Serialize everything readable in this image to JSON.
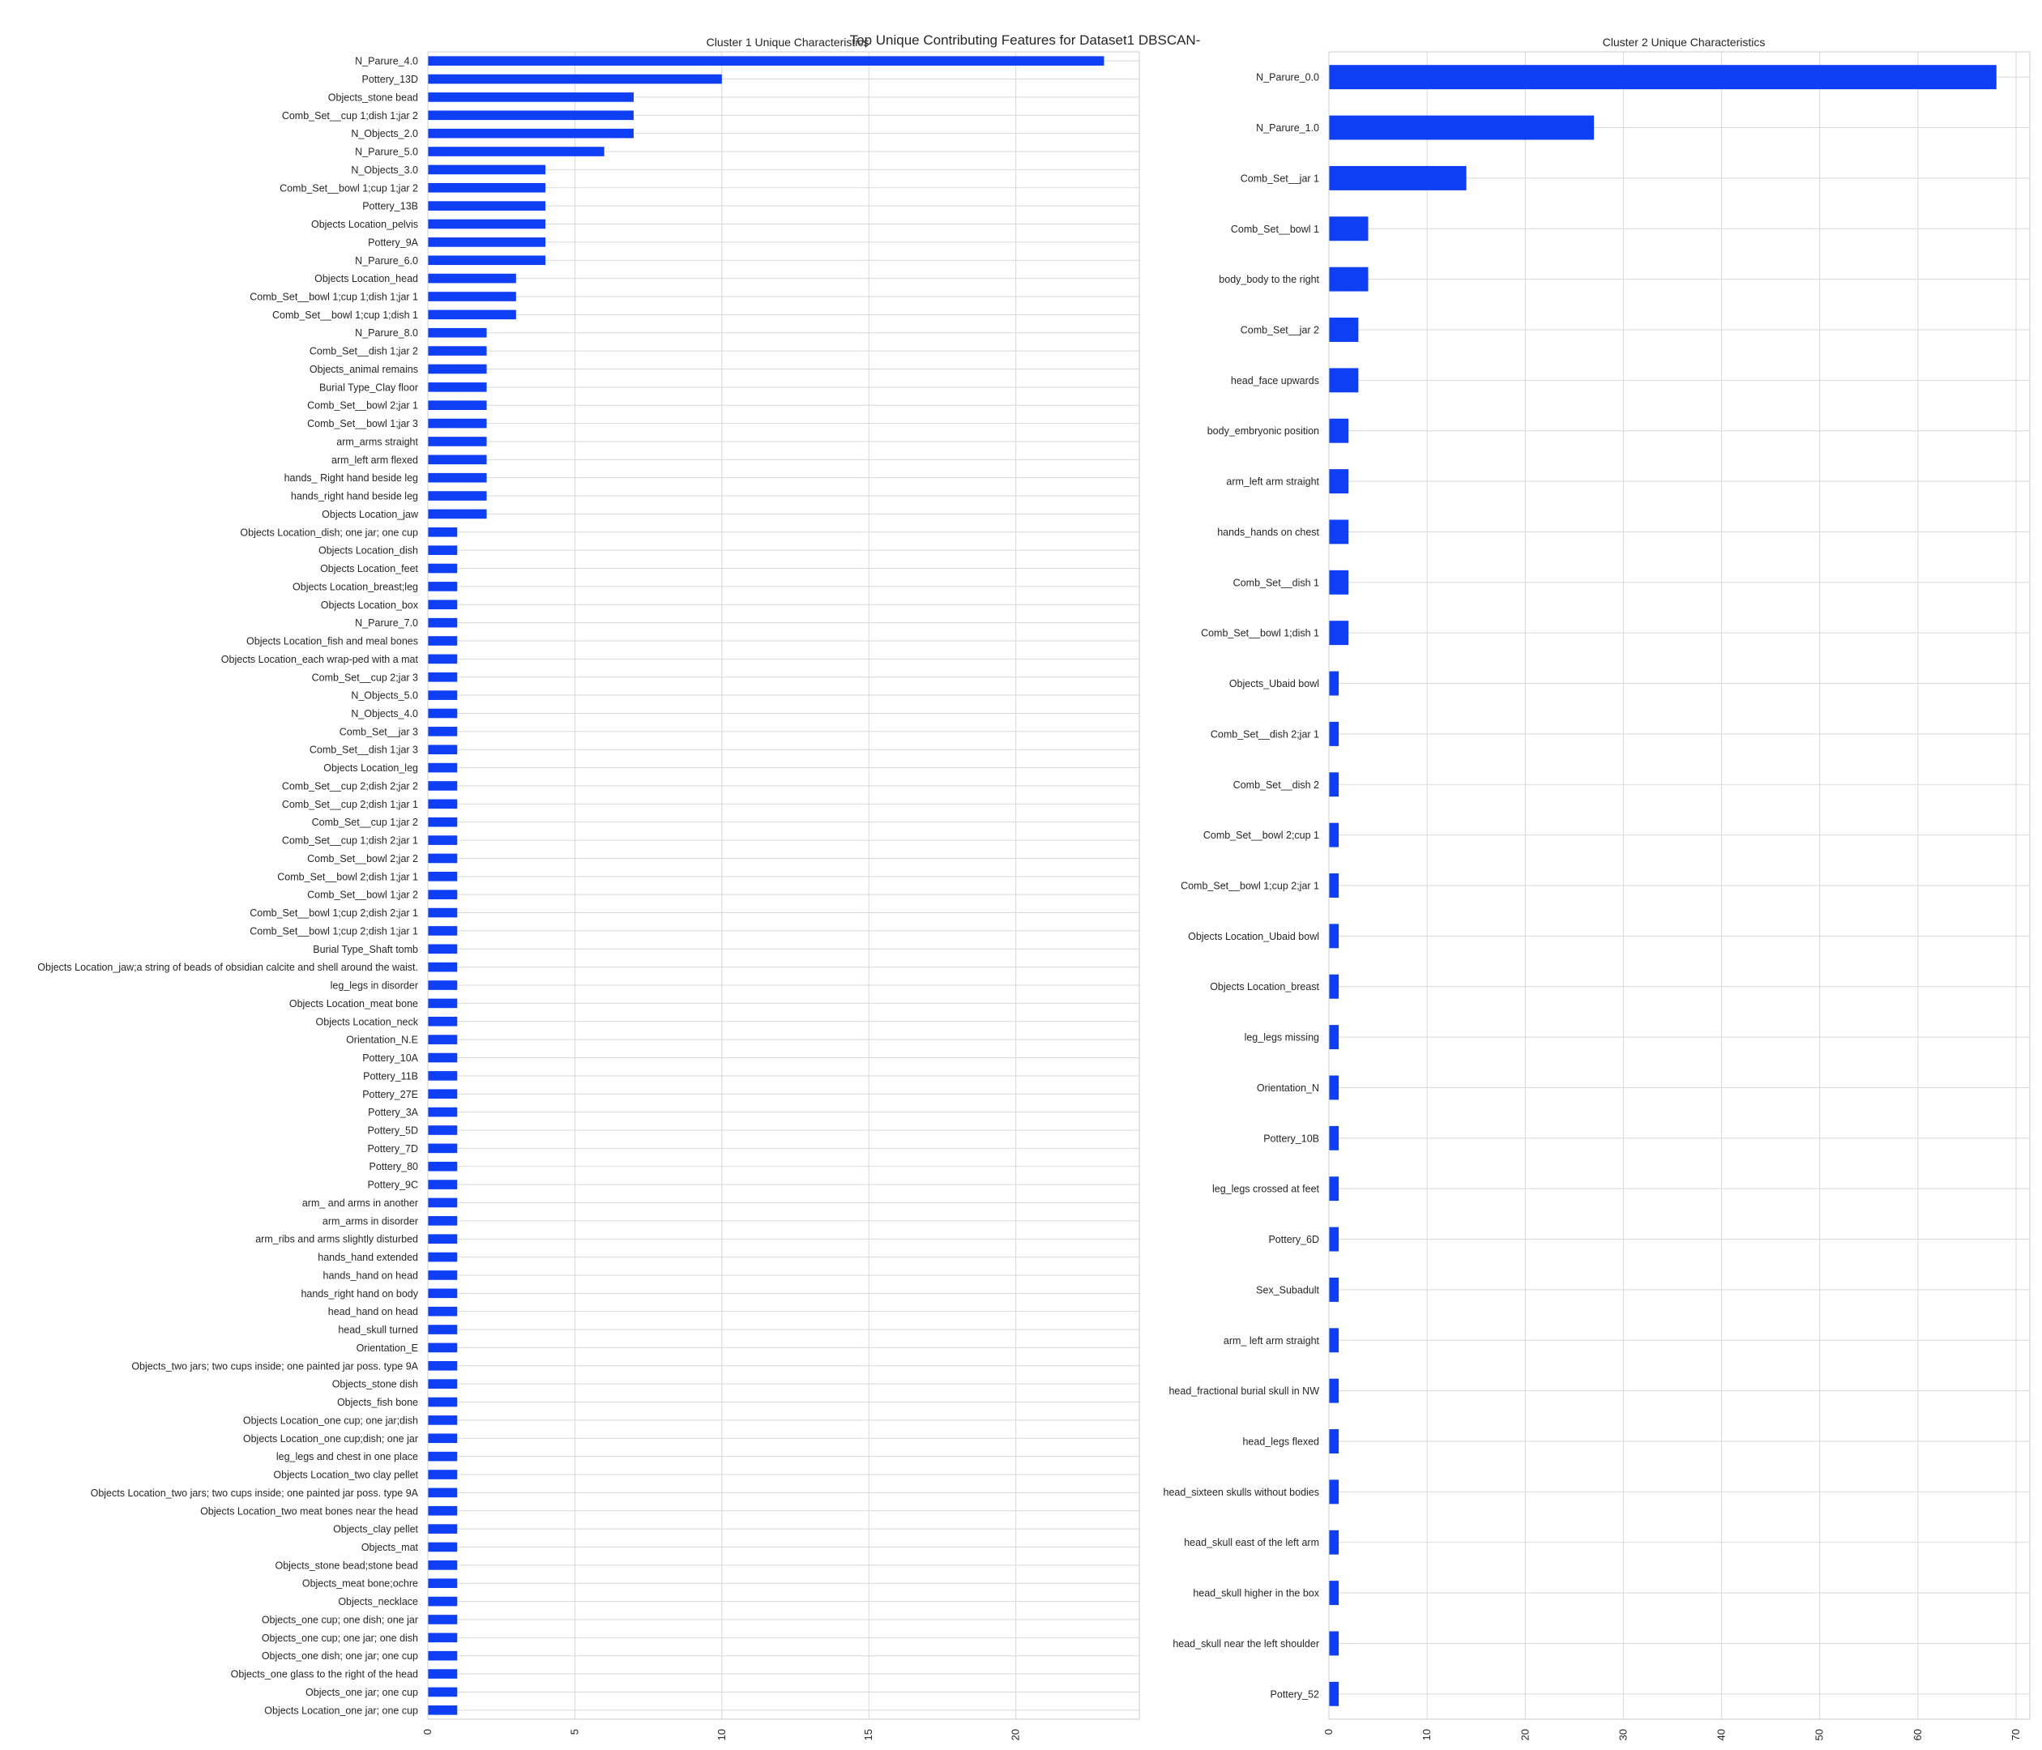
{
  "figure": {
    "suptitle": "Top Unique Contributing Features for Dataset1 DBSCAN-"
  },
  "colors": {
    "bar": "#0f3ff5",
    "grid": "#d9d9d9",
    "axis_line": "#cccccc",
    "background": "#ffffff",
    "text": "#262626"
  },
  "chart_data": [
    {
      "type": "bar",
      "orientation": "horizontal",
      "title": "Cluster 1 Unique Characteristics",
      "xlim": [
        0,
        24.2
      ],
      "xticks": [
        0,
        5,
        10,
        15,
        20
      ],
      "grid": true,
      "categories": [
        "N_Parure_4.0",
        "Pottery_13D",
        "Objects_stone bead",
        "Comb_Set__cup 1;dish 1;jar 2",
        "N_Objects_2.0",
        "N_Parure_5.0",
        "N_Objects_3.0",
        "Comb_Set__bowl 1;cup 1;jar 2",
        "Pottery_13B",
        "Objects Location_pelvis",
        "Pottery_9A",
        "N_Parure_6.0",
        "Objects Location_head",
        "Comb_Set__bowl 1;cup 1;dish 1;jar 1",
        "Comb_Set__bowl 1;cup 1;dish 1",
        "N_Parure_8.0",
        "Comb_Set__dish 1;jar 2",
        "Objects_animal remains",
        "Burial Type_Clay floor",
        "Comb_Set__bowl 2;jar 1",
        "Comb_Set__bowl 1;jar 3",
        "arm_arms straight",
        "arm_left arm flexed",
        "hands_ Right hand beside leg",
        "hands_right hand beside leg",
        "Objects Location_jaw",
        "Objects Location_dish; one jar; one cup",
        "Objects Location_dish",
        "Objects Location_feet",
        "Objects Location_breast;leg",
        "Objects Location_box",
        "N_Parure_7.0",
        "Objects Location_fish and meal bones",
        "Objects Location_each wrap-ped with a mat",
        "Comb_Set__cup 2;jar 3",
        "N_Objects_5.0",
        "N_Objects_4.0",
        "Comb_Set__jar 3",
        "Comb_Set__dish 1;jar 3",
        "Objects Location_leg",
        "Comb_Set__cup 2;dish 2;jar 2",
        "Comb_Set__cup 2;dish 1;jar 1",
        "Comb_Set__cup 1;jar 2",
        "Comb_Set__cup 1;dish 2;jar 1",
        "Comb_Set__bowl 2;jar 2",
        "Comb_Set__bowl 2;dish 1;jar 1",
        "Comb_Set__bowl 1;jar 2",
        "Comb_Set__bowl 1;cup 2;dish 2;jar 1",
        "Comb_Set__bowl 1;cup 2;dish 1;jar 1",
        "Burial Type_Shaft tomb",
        "Objects Location_jaw;a string of beads of obsidian calcite and shell around the waist.",
        "leg_legs in disorder",
        "Objects Location_meat bone",
        "Objects Location_neck",
        "Orientation_N.E",
        "Pottery_10A",
        "Pottery_11B",
        "Pottery_27E",
        "Pottery_3A",
        "Pottery_5D",
        "Pottery_7D",
        "Pottery_80",
        "Pottery_9C",
        "arm_ and arms in another",
        "arm_arms in disorder",
        "arm_ribs and arms slightly disturbed",
        "hands_hand extended",
        "hands_hand on head",
        "hands_right hand on body",
        "head_hand on head",
        "head_skull turned",
        "Orientation_E",
        "Objects_two jars; two cups inside; one painted jar poss. type 9A",
        "Objects_stone dish",
        "Objects_fish bone",
        "Objects Location_one cup; one jar;dish",
        "Objects Location_one cup;dish; one jar",
        "leg_legs and chest in one place",
        "Objects Location_two clay pellet",
        "Objects Location_two jars; two cups inside; one painted jar poss. type 9A",
        "Objects Location_two meat bones near the head",
        "Objects_clay pellet",
        "Objects_mat",
        "Objects_stone bead;stone bead",
        "Objects_meat bone;ochre",
        "Objects_necklace",
        "Objects_one cup; one dish; one jar",
        "Objects_one cup; one jar; one dish",
        "Objects_one dish; one jar; one cup",
        "Objects_one glass to the right of the head",
        "Objects_one jar; one cup",
        "Objects Location_one jar; one cup"
      ],
      "values": [
        23,
        10,
        7,
        7,
        7,
        6,
        4,
        4,
        4,
        4,
        4,
        4,
        3,
        3,
        3,
        2,
        2,
        2,
        2,
        2,
        2,
        2,
        2,
        2,
        2,
        2,
        1,
        1,
        1,
        1,
        1,
        1,
        1,
        1,
        1,
        1,
        1,
        1,
        1,
        1,
        1,
        1,
        1,
        1,
        1,
        1,
        1,
        1,
        1,
        1,
        1,
        1,
        1,
        1,
        1,
        1,
        1,
        1,
        1,
        1,
        1,
        1,
        1,
        1,
        1,
        1,
        1,
        1,
        1,
        1,
        1,
        1,
        1,
        1,
        1,
        1,
        1,
        1,
        1,
        1,
        1,
        1,
        1,
        1,
        1,
        1,
        1,
        1,
        1,
        1,
        1,
        1
      ]
    },
    {
      "type": "bar",
      "orientation": "horizontal",
      "title": "Cluster 2 Unique Characteristics",
      "xlim": [
        0,
        71.4
      ],
      "xticks": [
        0,
        10,
        20,
        30,
        40,
        50,
        60,
        70
      ],
      "grid": true,
      "categories": [
        "N_Parure_0.0",
        "N_Parure_1.0",
        "Comb_Set__jar 1",
        "Comb_Set__bowl 1",
        "body_body to the right",
        "Comb_Set__jar 2",
        "head_face upwards",
        "body_embryonic position",
        "arm_left arm straight",
        "hands_hands on chest",
        "Comb_Set__dish 1",
        "Comb_Set__bowl 1;dish 1",
        "Objects_Ubaid bowl",
        "Comb_Set__dish 2;jar 1",
        "Comb_Set__dish 2",
        "Comb_Set__bowl 2;cup 1",
        "Comb_Set__bowl 1;cup 2;jar 1",
        "Objects Location_Ubaid bowl",
        "Objects Location_breast",
        "leg_legs missing",
        "Orientation_N",
        "Pottery_10B",
        "leg_legs crossed at feet",
        "Pottery_6D",
        "Sex_Subadult",
        "arm_ left arm straight",
        "head_fractional burial skull in NW",
        "head_legs flexed",
        "head_sixteen skulls without bodies",
        "head_skull east of the left arm",
        "head_skull higher in the box",
        "head_skull near the left shoulder",
        "Pottery_52"
      ],
      "values": [
        68,
        27,
        14,
        4,
        4,
        3,
        3,
        2,
        2,
        2,
        2,
        2,
        1,
        1,
        1,
        1,
        1,
        1,
        1,
        1,
        1,
        1,
        1,
        1,
        1,
        1,
        1,
        1,
        1,
        1,
        1,
        1,
        1
      ]
    }
  ]
}
